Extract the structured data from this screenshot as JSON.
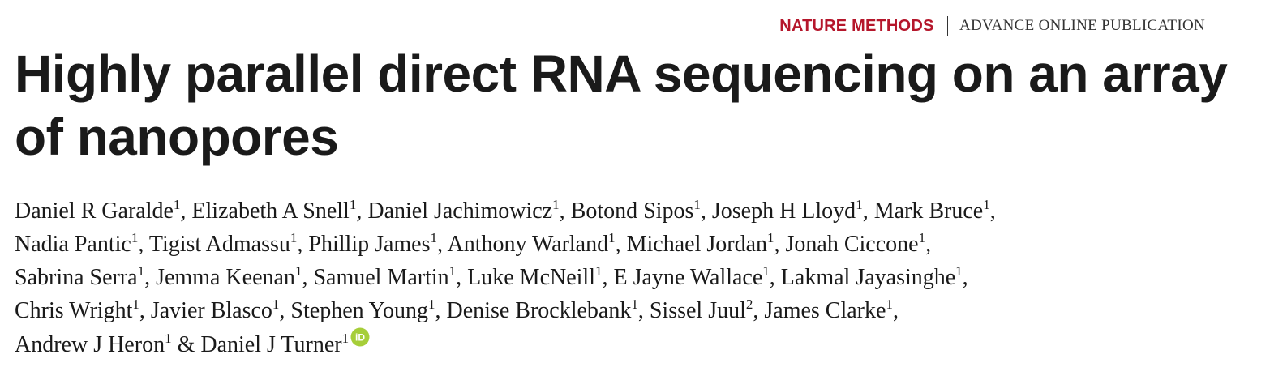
{
  "header": {
    "journal": "NATURE METHODS",
    "publication_type": "ADVANCE ONLINE PUBLICATION"
  },
  "title": "Highly parallel direct RNA sequencing on an array of nanopores",
  "authors": [
    {
      "name": "Daniel R Garalde",
      "aff": "1"
    },
    {
      "name": "Elizabeth A Snell",
      "aff": "1"
    },
    {
      "name": "Daniel Jachimowicz",
      "aff": "1"
    },
    {
      "name": "Botond Sipos",
      "aff": "1"
    },
    {
      "name": "Joseph H Lloyd",
      "aff": "1"
    },
    {
      "name": "Mark Bruce",
      "aff": "1"
    },
    {
      "name": "Nadia Pantic",
      "aff": "1"
    },
    {
      "name": "Tigist Admassu",
      "aff": "1"
    },
    {
      "name": "Phillip James",
      "aff": "1"
    },
    {
      "name": "Anthony Warland",
      "aff": "1"
    },
    {
      "name": "Michael Jordan",
      "aff": "1"
    },
    {
      "name": "Jonah Ciccone",
      "aff": "1"
    },
    {
      "name": "Sabrina Serra",
      "aff": "1"
    },
    {
      "name": "Jemma Keenan",
      "aff": "1"
    },
    {
      "name": "Samuel Martin",
      "aff": "1"
    },
    {
      "name": "Luke McNeill",
      "aff": "1"
    },
    {
      "name": "E Jayne Wallace",
      "aff": "1"
    },
    {
      "name": "Lakmal Jayasinghe",
      "aff": "1"
    },
    {
      "name": "Chris Wright",
      "aff": "1"
    },
    {
      "name": "Javier Blasco",
      "aff": "1"
    },
    {
      "name": "Stephen Young",
      "aff": "1"
    },
    {
      "name": "Denise Brocklebank",
      "aff": "1"
    },
    {
      "name": "Sissel Juul",
      "aff": "2"
    },
    {
      "name": "James Clarke",
      "aff": "1"
    },
    {
      "name": "Andrew J Heron",
      "aff": "1"
    },
    {
      "name": "Daniel J Turner",
      "aff": "1"
    }
  ],
  "last_author_joiner": "&",
  "orcid_icon_label": "iD",
  "colors": {
    "journal_red": "#b5162b",
    "orcid_green": "#a6ce39"
  }
}
